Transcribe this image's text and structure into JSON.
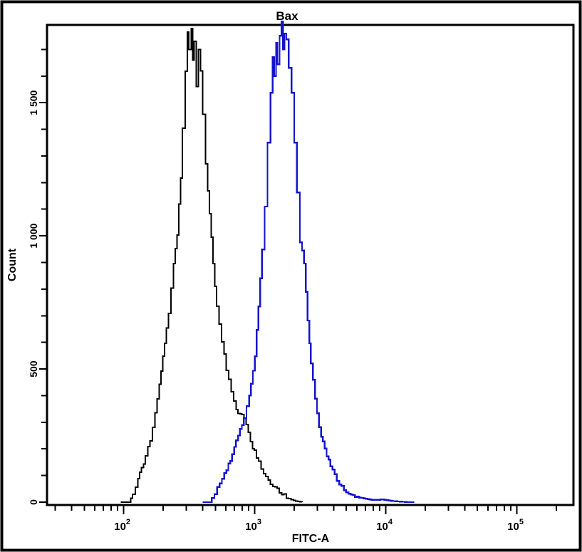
{
  "window": {
    "title": "Bax"
  },
  "chart_data": {
    "type": "line",
    "variant": "flow-cytometry-histogram-overlay",
    "title": "Bax",
    "xlabel": "FITC-A",
    "ylabel": "Count",
    "x_scale": "log10",
    "x_range": [
      26,
      270000
    ],
    "y_range": [
      0,
      1792
    ],
    "grid": false,
    "legend_position": "none",
    "background_color": "#ffffff",
    "axis_color": "#000000",
    "x_ticks_major": [
      {
        "value": 100,
        "label_base": "10",
        "label_exp": "2"
      },
      {
        "value": 1000,
        "label_base": "10",
        "label_exp": "3"
      },
      {
        "value": 10000,
        "label_base": "10",
        "label_exp": "4"
      },
      {
        "value": 100000,
        "label_base": "10",
        "label_exp": "5"
      }
    ],
    "x_minor_ticks": "log sub-ticks at 2-9 per decade",
    "y_ticks_major": [
      {
        "value": 0,
        "label": "0"
      },
      {
        "value": 500,
        "label": "500"
      },
      {
        "value": 1000,
        "label": "1 000"
      },
      {
        "value": 1500,
        "label": "1 500"
      }
    ],
    "y_minor_step": 100,
    "series": [
      {
        "name": "black-histogram",
        "color": "#000000",
        "line_width": 2,
        "peak": {
          "x": 330,
          "count": 1778
        },
        "points": [
          [
            95,
            0
          ],
          [
            109,
            0
          ],
          [
            117,
            30
          ],
          [
            128,
            88
          ],
          [
            146,
            174
          ],
          [
            159,
            230
          ],
          [
            166,
            281
          ],
          [
            180,
            388
          ],
          [
            199,
            548
          ],
          [
            219,
            709
          ],
          [
            240,
            896
          ],
          [
            255,
            1003
          ],
          [
            271,
            1217
          ],
          [
            281,
            1404
          ],
          [
            295,
            1618
          ],
          [
            306,
            1765
          ],
          [
            313,
            1700
          ],
          [
            328,
            1778
          ],
          [
            336,
            1660
          ],
          [
            344,
            1730
          ],
          [
            357,
            1560
          ],
          [
            372,
            1700
          ],
          [
            385,
            1620
          ],
          [
            400,
            1457
          ],
          [
            422,
            1270
          ],
          [
            450,
            1083
          ],
          [
            479,
            896
          ],
          [
            510,
            735
          ],
          [
            557,
            602
          ],
          [
            607,
            495
          ],
          [
            662,
            414
          ],
          [
            721,
            348
          ],
          [
            825,
            315
          ],
          [
            928,
            227
          ],
          [
            1029,
            166
          ],
          [
            1164,
            107
          ],
          [
            1318,
            67
          ],
          [
            1540,
            35
          ],
          [
            1814,
            13
          ],
          [
            2054,
            4
          ],
          [
            2300,
            0
          ]
        ]
      },
      {
        "name": "blue-histogram",
        "color": "#1414cc",
        "line_width": 2.4,
        "peak": {
          "x": 1605,
          "count": 1805
        },
        "points": [
          [
            400,
            0
          ],
          [
            450,
            0
          ],
          [
            492,
            30
          ],
          [
            540,
            70
          ],
          [
            607,
            120
          ],
          [
            672,
            180
          ],
          [
            745,
            250
          ],
          [
            825,
            315
          ],
          [
            905,
            400
          ],
          [
            1000,
            548
          ],
          [
            1064,
            735
          ],
          [
            1133,
            949
          ],
          [
            1190,
            1110
          ],
          [
            1251,
            1350
          ],
          [
            1318,
            1537
          ],
          [
            1368,
            1671
          ],
          [
            1402,
            1600
          ],
          [
            1454,
            1724
          ],
          [
            1490,
            1644
          ],
          [
            1547,
            1751
          ],
          [
            1605,
            1805
          ],
          [
            1644,
            1700
          ],
          [
            1681,
            1760
          ],
          [
            1742,
            1738
          ],
          [
            1810,
            1631
          ],
          [
            1907,
            1537
          ],
          [
            2000,
            1350
          ],
          [
            2100,
            1163
          ],
          [
            2210,
            976
          ],
          [
            2380,
            896
          ],
          [
            2530,
            682
          ],
          [
            2680,
            521
          ],
          [
            2880,
            388
          ],
          [
            3095,
            281
          ],
          [
            3420,
            201
          ],
          [
            3770,
            134
          ],
          [
            4230,
            80
          ],
          [
            4780,
            45
          ],
          [
            5400,
            29
          ],
          [
            6500,
            16
          ],
          [
            7800,
            8
          ],
          [
            9400,
            10
          ],
          [
            11300,
            4
          ],
          [
            12800,
            2
          ],
          [
            14500,
            0
          ],
          [
            16500,
            0
          ]
        ]
      }
    ]
  }
}
